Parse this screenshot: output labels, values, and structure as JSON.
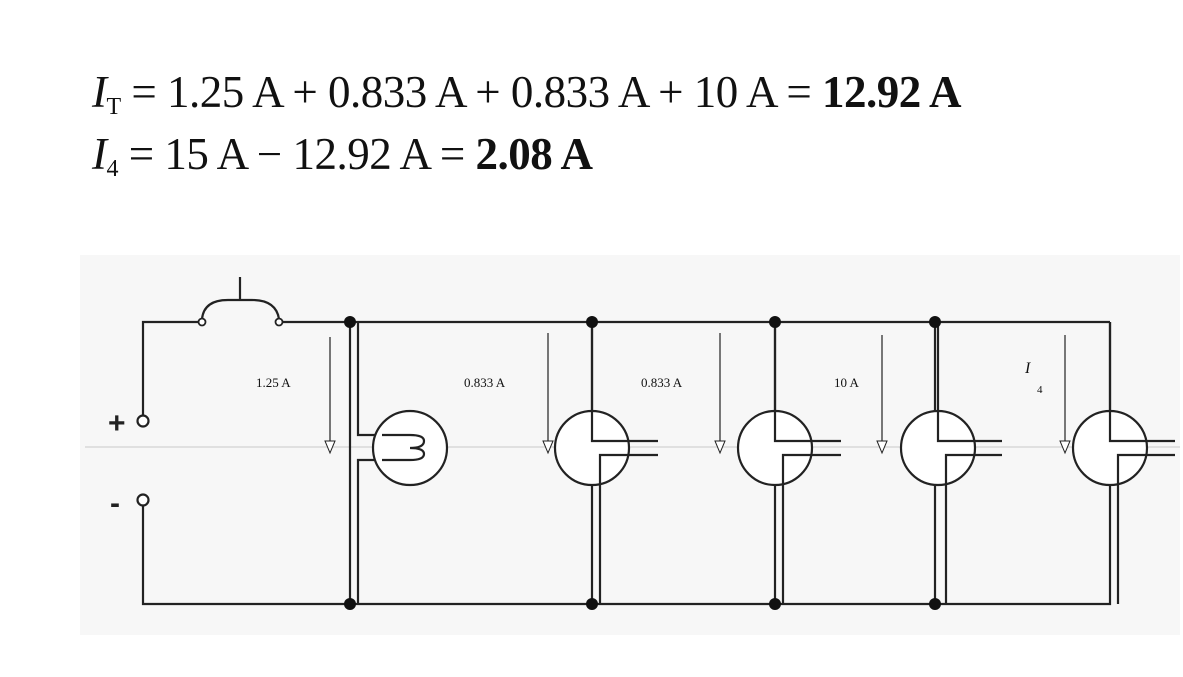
{
  "equations": {
    "line1": {
      "lhs_symbol": "I",
      "lhs_sub": "T",
      "expr": " = 1.25 A + 0.833 A + 0.833 A + 10 A = ",
      "result": "12.92 A"
    },
    "line2": {
      "lhs_symbol": "I",
      "lhs_sub": "4",
      "expr": " = 15 A − 12.92 A = ",
      "result": "2.08 A"
    }
  },
  "circuit": {
    "terminal_plus": "+",
    "terminal_minus": "-",
    "branch_labels": [
      "1.25 A",
      "0.833 A",
      "0.833 A",
      "10 A"
    ],
    "unknown_branch": {
      "symbol": "I",
      "sub": "4"
    }
  }
}
